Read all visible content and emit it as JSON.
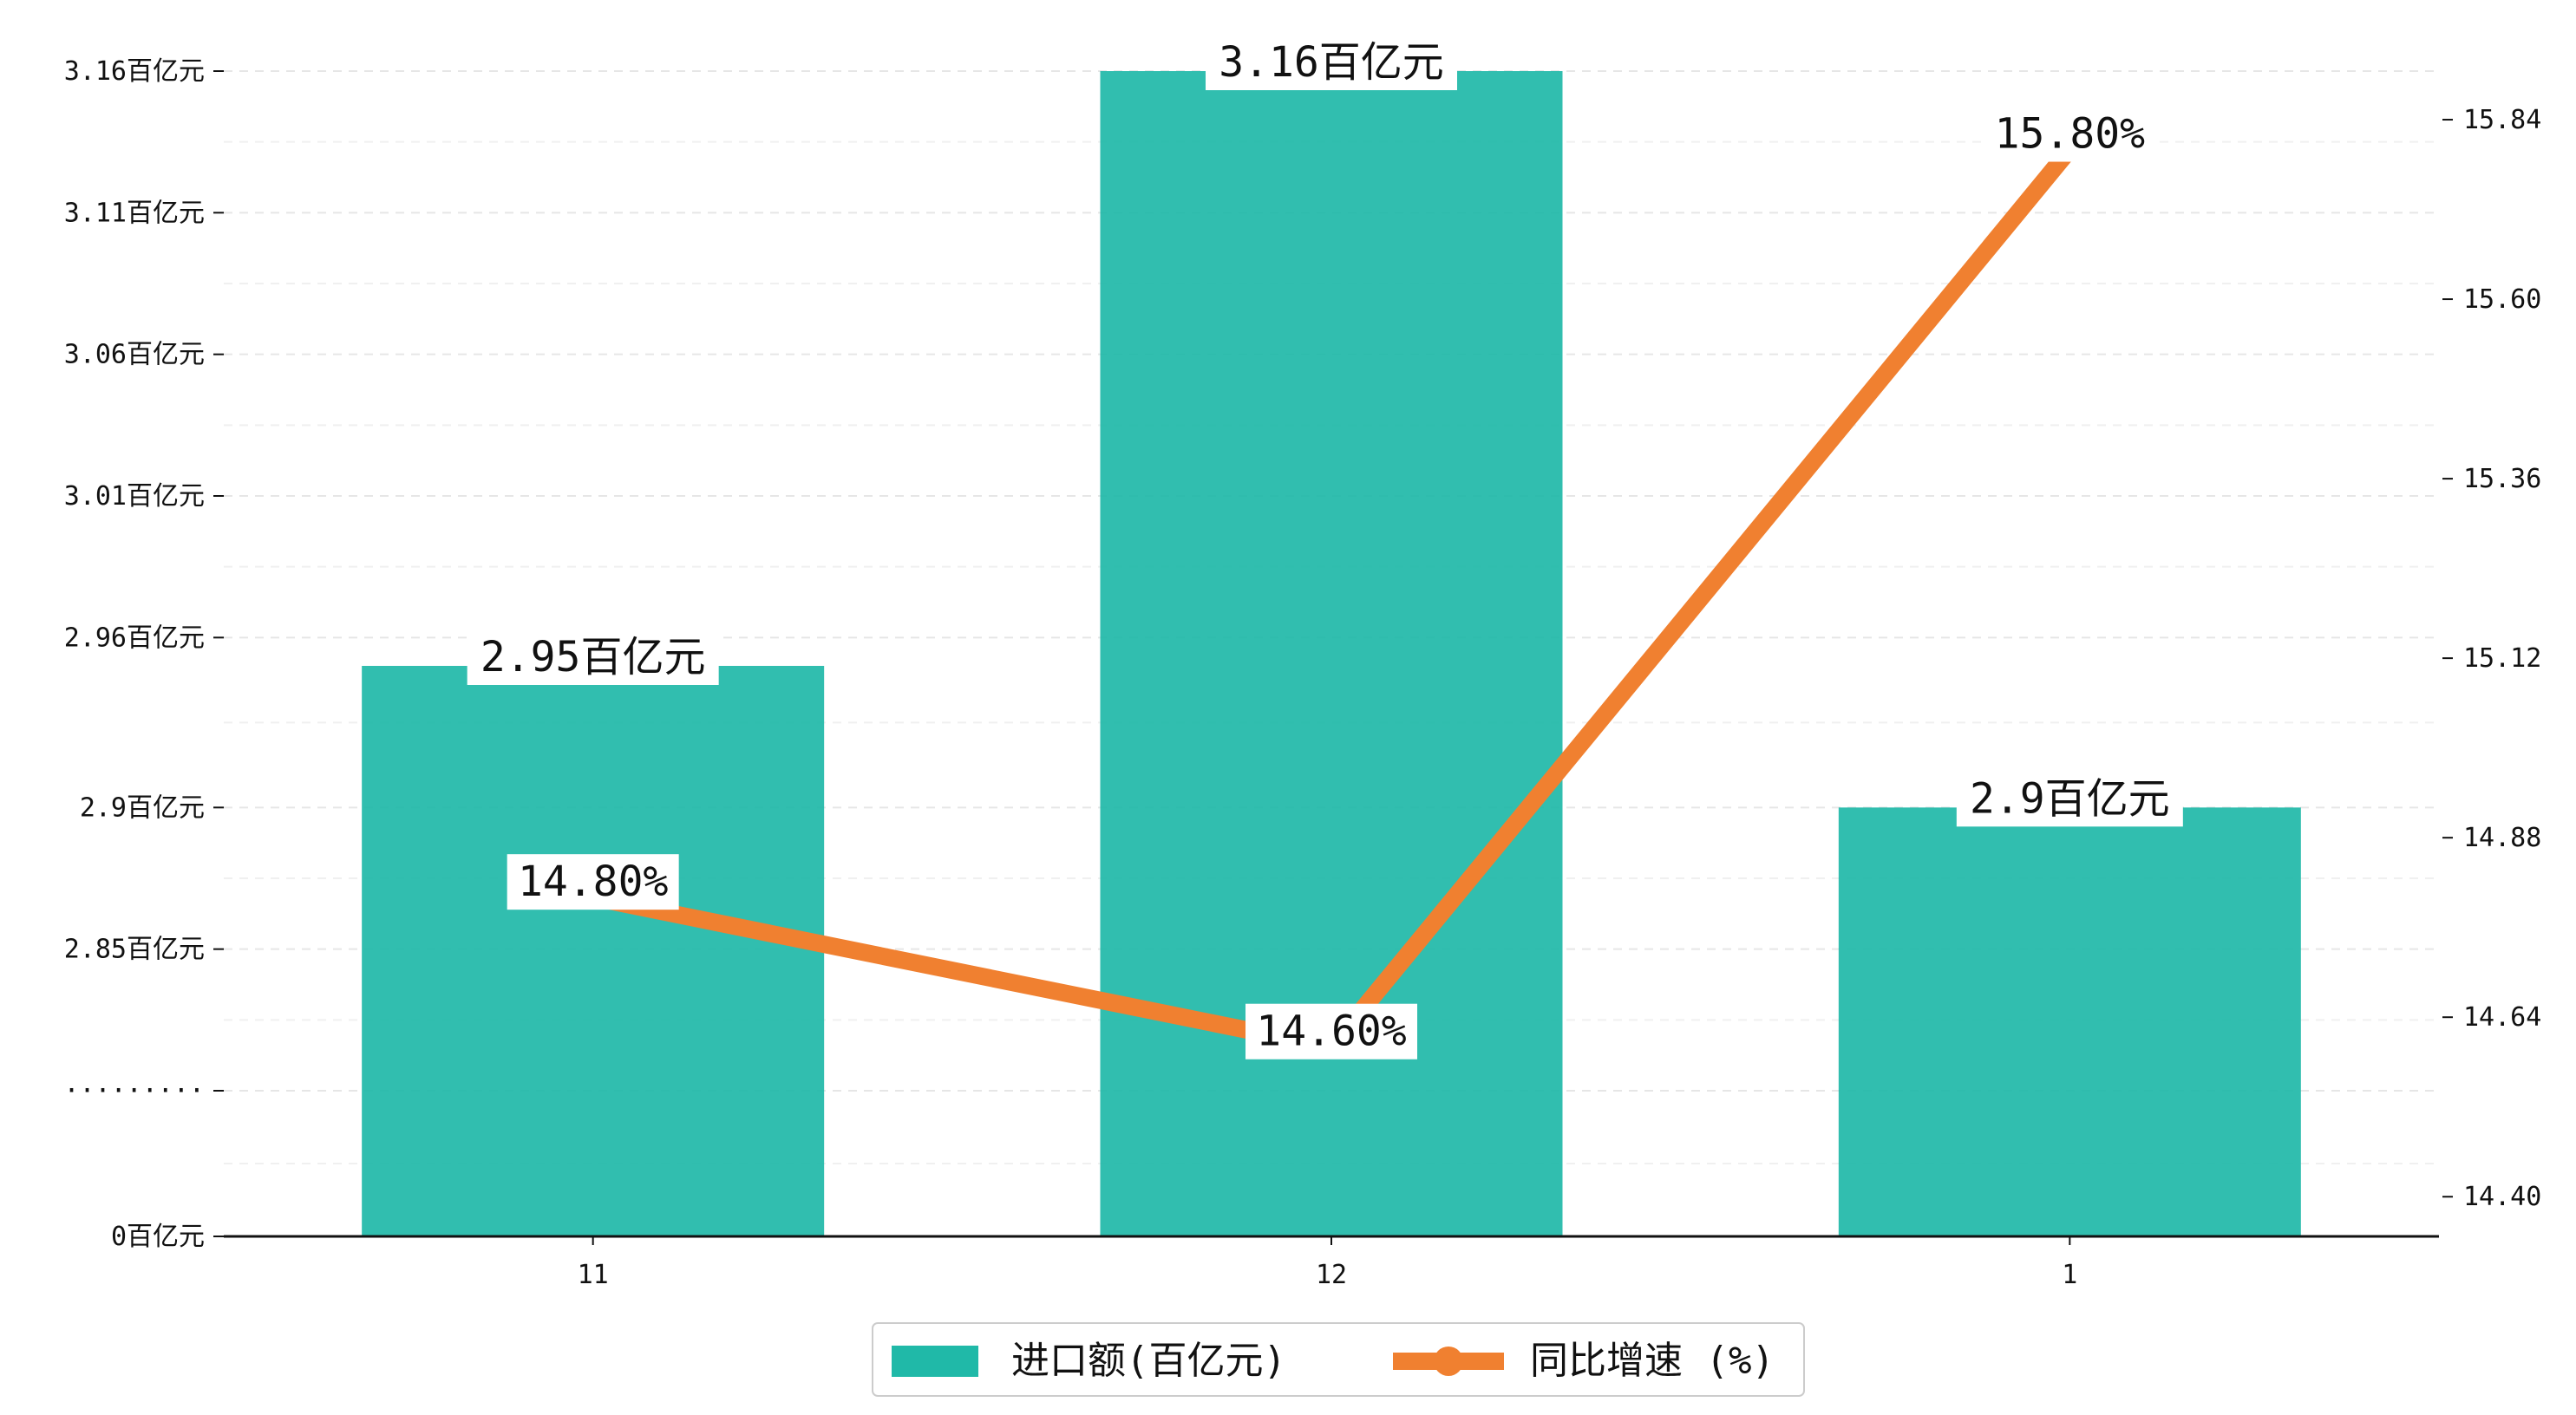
{
  "chart_data": {
    "type": "bar",
    "categories": [
      "11",
      "12",
      "1"
    ],
    "series": [
      {
        "name": "进口额(百亿元)",
        "type": "bar",
        "values": [
          2.95,
          3.16,
          2.9
        ],
        "labels": [
          "2.95百亿元",
          "3.16百亿元",
          "2.9百亿元"
        ],
        "color": "#20B9A8"
      },
      {
        "name": "同比增速 (%)",
        "type": "line",
        "values": [
          14.8,
          14.6,
          15.8
        ],
        "labels": [
          "14.80%",
          "14.60%",
          "15.80%"
        ],
        "color": "#F08030"
      }
    ],
    "y_left": {
      "tick_labels": [
        "0百亿元",
        "·········",
        "2.85百亿元",
        "2.9百亿元",
        "2.96百亿元",
        "3.01百亿元",
        "3.06百亿元",
        "3.11百亿元",
        "3.16百亿元"
      ],
      "scale": "broken: 0 then 2.80 to 3.16",
      "range": [
        0,
        3.16
      ]
    },
    "y_right": {
      "ticks": [
        14.4,
        14.64,
        14.88,
        15.12,
        15.36,
        15.6,
        15.84
      ],
      "tick_labels": [
        "14.40",
        "14.64",
        "14.88",
        "15.12",
        "15.36",
        "15.60",
        "15.84"
      ],
      "range": [
        14.34,
        16.0
      ]
    },
    "grid": "horizontal dashed, light",
    "legend_position": "bottom-center"
  }
}
